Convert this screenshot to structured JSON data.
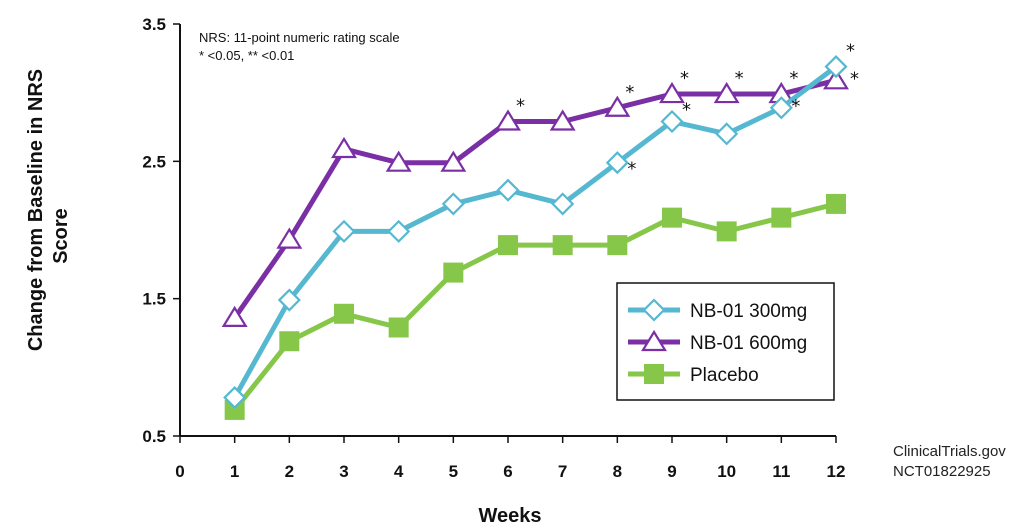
{
  "chart_data": {
    "type": "line",
    "xlabel": "Weeks",
    "ylabel_lines": [
      "Change from Baseline in NRS",
      "Score"
    ],
    "x_ticks": [
      0,
      1,
      2,
      3,
      4,
      5,
      6,
      7,
      8,
      9,
      10,
      11,
      12
    ],
    "y_ticks": [
      0.5,
      1.5,
      2.5,
      3.5
    ],
    "y_tick_labels": [
      "0.5",
      "1.5",
      "2.5",
      "3.5"
    ],
    "xlim": [
      0,
      12
    ],
    "ylim": [
      0.5,
      3.5
    ],
    "grid": false,
    "legend_position": "lower-right",
    "notes": [
      "NRS: 11-point numeric rating scale",
      "* <0.05, ** <0.01"
    ],
    "source_lines": [
      "ClinicalTrials.gov",
      "NCT01822925"
    ],
    "x": [
      1,
      2,
      3,
      4,
      5,
      6,
      7,
      8,
      9,
      10,
      11,
      12
    ],
    "series": [
      {
        "name": "NB-01 300mg",
        "color": "#56B8D0",
        "marker": "diamond",
        "values": [
          0.78,
          1.49,
          1.99,
          1.99,
          2.19,
          2.29,
          2.19,
          2.49,
          2.79,
          2.7,
          2.89,
          3.19
        ]
      },
      {
        "name": "NB-01 600mg",
        "color": "#7B2FA5",
        "marker": "triangle",
        "values": [
          1.36,
          1.93,
          2.59,
          2.49,
          2.49,
          2.79,
          2.79,
          2.89,
          2.99,
          2.99,
          2.99,
          3.09
        ]
      },
      {
        "name": "Placebo",
        "color": "#86C74A",
        "marker": "square",
        "values": [
          0.69,
          1.19,
          1.39,
          1.29,
          1.69,
          1.89,
          1.89,
          1.89,
          2.09,
          1.99,
          2.09,
          2.19
        ]
      }
    ],
    "significance_markers": [
      {
        "x": 6,
        "series": "NB-01 600mg",
        "text": "*"
      },
      {
        "x": 8,
        "series": "NB-01 600mg",
        "text": "*"
      },
      {
        "x": 8,
        "series": "NB-01 300mg",
        "text": "*"
      },
      {
        "x": 9,
        "series": "NB-01 600mg",
        "text": "*"
      },
      {
        "x": 9,
        "series": "NB-01 300mg",
        "text": "*"
      },
      {
        "x": 10,
        "series": "NB-01 600mg",
        "text": "*"
      },
      {
        "x": 11,
        "series": "NB-01 600mg",
        "text": "*"
      },
      {
        "x": 11,
        "series": "NB-01 300mg",
        "text": "*"
      },
      {
        "x": 12,
        "series": "NB-01 300mg",
        "text": "*"
      },
      {
        "x": 12,
        "series": "NB-01 600mg",
        "text": "*"
      }
    ]
  }
}
